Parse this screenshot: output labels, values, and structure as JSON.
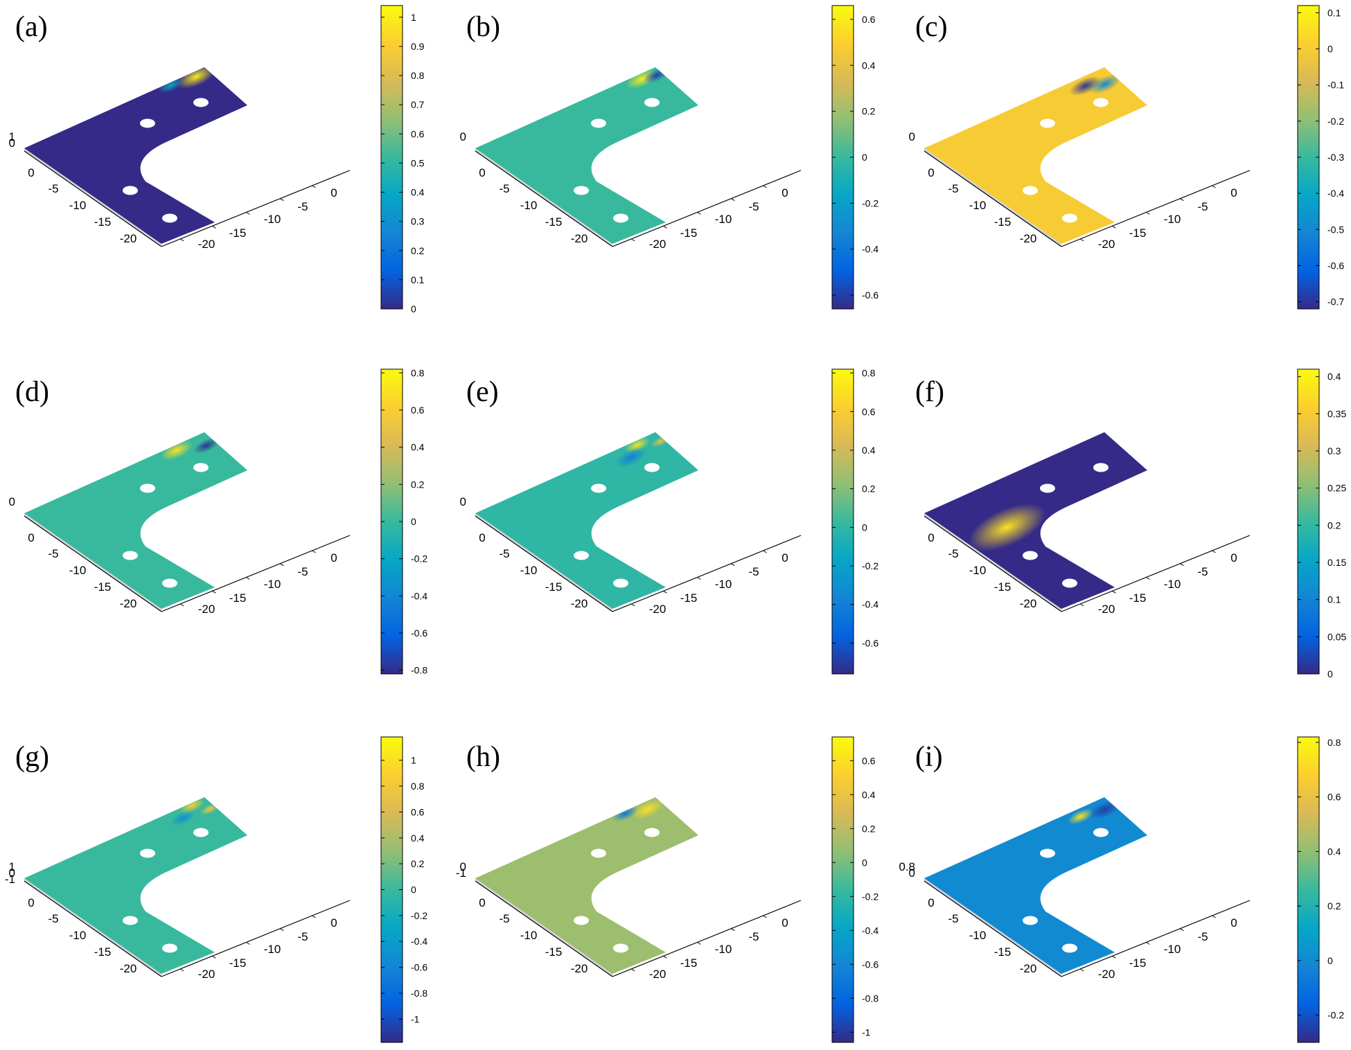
{
  "chart_data": [
    {
      "label": "(a)",
      "type": "surface3d",
      "cb_min": 0,
      "cb_max": 1.04,
      "cb_ticks": [
        "0",
        "0.1",
        "0.2",
        "0.3",
        "0.4",
        "0.5",
        "0.6",
        "0.7",
        "0.8",
        "0.9",
        "1"
      ],
      "cb_values": [
        0,
        0.1,
        0.2,
        0.3,
        0.4,
        0.5,
        0.6,
        0.7,
        0.8,
        0.9,
        1
      ],
      "x_ticks": [
        "0",
        "-5",
        "-10",
        "-15",
        "-20"
      ],
      "y_ticks": [
        "-20",
        "-15",
        "-10",
        "-5",
        "0"
      ],
      "z_ticks": [
        "1",
        "0"
      ],
      "base_level": 0.0,
      "hot": [
        {
          "u": 0.93,
          "v": 0.9,
          "val": 1.0,
          "s": 0.06
        },
        {
          "u": 0.8,
          "v": 0.95,
          "val": 0.4,
          "s": 0.04
        }
      ]
    },
    {
      "label": "(b)",
      "type": "surface3d",
      "cb_min": -0.66,
      "cb_max": 0.66,
      "cb_ticks": [
        "-0.6",
        "-0.4",
        "-0.2",
        "0",
        "0.2",
        "0.4",
        "0.6"
      ],
      "cb_values": [
        -0.6,
        -0.4,
        -0.2,
        0,
        0.2,
        0.4,
        0.6
      ],
      "x_ticks": [
        "0",
        "-5",
        "-10",
        "-15",
        "-20"
      ],
      "y_ticks": [
        "-20",
        "-15",
        "-10",
        "-5",
        "0"
      ],
      "z_ticks": [
        "0"
      ],
      "base_level": 0.0,
      "hot": [
        {
          "u": 0.9,
          "v": 0.9,
          "val": 0.6,
          "s": 0.05
        },
        {
          "u": 0.97,
          "v": 0.85,
          "val": -0.6,
          "s": 0.04
        }
      ]
    },
    {
      "label": "(c)",
      "type": "surface3d",
      "cb_min": -0.72,
      "cb_max": 0.12,
      "cb_ticks": [
        "-0.7",
        "-0.6",
        "-0.5",
        "-0.4",
        "-0.3",
        "-0.2",
        "-0.1",
        "0",
        "0.1"
      ],
      "cb_values": [
        -0.7,
        -0.6,
        -0.5,
        -0.4,
        -0.3,
        -0.2,
        -0.1,
        0,
        0.1
      ],
      "x_ticks": [
        "0",
        "-5",
        "-10",
        "-15",
        "-20"
      ],
      "y_ticks": [
        "-20",
        "-15",
        "-10",
        "-5",
        "0"
      ],
      "z_ticks": [
        "0"
      ],
      "base_level": 0.0,
      "hot": [
        {
          "u": 0.85,
          "v": 0.82,
          "val": -0.7,
          "s": 0.05
        },
        {
          "u": 0.93,
          "v": 0.7,
          "val": -0.5,
          "s": 0.05
        }
      ]
    },
    {
      "label": "(d)",
      "type": "surface3d",
      "cb_min": -0.82,
      "cb_max": 0.82,
      "cb_ticks": [
        "-0.8",
        "-0.6",
        "-0.4",
        "-0.2",
        "0",
        "0.2",
        "0.4",
        "0.6",
        "0.8"
      ],
      "cb_values": [
        -0.8,
        -0.6,
        -0.4,
        -0.2,
        0,
        0.2,
        0.4,
        0.6,
        0.8
      ],
      "x_ticks": [
        "0",
        "-5",
        "-10",
        "-15",
        "-20"
      ],
      "y_ticks": [
        "-20",
        "-15",
        "-10",
        "-5",
        "0"
      ],
      "z_ticks": [
        "0"
      ],
      "base_level": 0.0,
      "hot": [
        {
          "u": 0.82,
          "v": 0.9,
          "val": 0.7,
          "s": 0.05
        },
        {
          "u": 0.95,
          "v": 0.75,
          "val": -0.8,
          "s": 0.04
        }
      ]
    },
    {
      "label": "(e)",
      "type": "surface3d",
      "cb_min": -0.76,
      "cb_max": 0.82,
      "cb_ticks": [
        "-0.6",
        "-0.4",
        "-0.2",
        "0",
        "0.2",
        "0.4",
        "0.6",
        "0.8"
      ],
      "cb_values": [
        -0.6,
        -0.4,
        -0.2,
        0,
        0.2,
        0.4,
        0.6,
        0.8
      ],
      "x_ticks": [
        "0",
        "-5",
        "-10",
        "-15",
        "-20"
      ],
      "y_ticks": [
        "-20",
        "-15",
        "-10",
        "-5",
        "0"
      ],
      "z_ticks": [
        "0"
      ],
      "base_level": 0.0,
      "hot": [
        {
          "u": 0.88,
          "v": 0.92,
          "val": 0.7,
          "s": 0.04
        },
        {
          "u": 0.98,
          "v": 0.8,
          "val": 0.5,
          "s": 0.03
        },
        {
          "u": 0.8,
          "v": 0.75,
          "val": -0.4,
          "s": 0.05
        }
      ]
    },
    {
      "label": "(f)",
      "type": "surface3d",
      "cb_min": 0,
      "cb_max": 0.41,
      "cb_ticks": [
        "0",
        "0.05",
        "0.1",
        "0.15",
        "0.2",
        "0.25",
        "0.3",
        "0.35",
        "0.4"
      ],
      "cb_values": [
        0,
        0.05,
        0.1,
        0.15,
        0.2,
        0.25,
        0.3,
        0.35,
        0.4
      ],
      "x_ticks": [
        "0",
        "-5",
        "-10",
        "-15",
        "-20"
      ],
      "y_ticks": [
        "-20",
        "-15",
        "-10",
        "-5",
        "0"
      ],
      "z_ticks": [],
      "base_level": 0.0,
      "hot": [
        {
          "u": 0.18,
          "v": 0.1,
          "val": 0.38,
          "s": 0.12
        }
      ]
    },
    {
      "label": "(g)",
      "type": "surface3d",
      "cb_min": -1.18,
      "cb_max": 1.18,
      "cb_ticks": [
        "-1",
        "-0.8",
        "-0.6",
        "-0.4",
        "-0.2",
        "0",
        "0.2",
        "0.4",
        "0.6",
        "0.8",
        "1"
      ],
      "cb_values": [
        -1,
        -0.8,
        -0.6,
        -0.4,
        -0.2,
        0,
        0.2,
        0.4,
        0.6,
        0.8,
        1
      ],
      "x_ticks": [
        "0",
        "-5",
        "-10",
        "-15",
        "-20"
      ],
      "y_ticks": [
        "-20",
        "-15",
        "-10",
        "-5",
        "0"
      ],
      "z_ticks": [
        "1",
        "0",
        "-1"
      ],
      "base_level": 0.0,
      "hot": [
        {
          "u": 0.92,
          "v": 0.95,
          "val": 0.9,
          "s": 0.04
        },
        {
          "u": 0.83,
          "v": 0.8,
          "val": -0.5,
          "s": 0.04
        },
        {
          "u": 0.97,
          "v": 0.75,
          "val": 0.8,
          "s": 0.03
        }
      ]
    },
    {
      "label": "(h)",
      "type": "surface3d",
      "cb_min": -1.06,
      "cb_max": 0.74,
      "cb_ticks": [
        "-1",
        "-0.8",
        "-0.6",
        "-0.4",
        "-0.2",
        "0",
        "0.2",
        "0.4",
        "0.6"
      ],
      "cb_values": [
        -1,
        -0.8,
        -0.6,
        -0.4,
        -0.2,
        0,
        0.2,
        0.4,
        0.6
      ],
      "x_ticks": [
        "0",
        "-5",
        "-10",
        "-15",
        "-20"
      ],
      "y_ticks": [
        "-20",
        "-15",
        "-10",
        "-5",
        "0"
      ],
      "z_ticks": [
        "0",
        "-1"
      ],
      "base_level": 0.1,
      "hot": [
        {
          "u": 0.92,
          "v": 0.85,
          "val": 0.6,
          "s": 0.05
        },
        {
          "u": 0.82,
          "v": 0.95,
          "val": -0.7,
          "s": 0.04
        }
      ]
    },
    {
      "label": "(i)",
      "type": "surface3d",
      "cb_min": -0.3,
      "cb_max": 0.82,
      "cb_ticks": [
        "-0.2",
        "0",
        "0.2",
        "0.4",
        "0.6",
        "0.8"
      ],
      "cb_values": [
        -0.2,
        0,
        0.2,
        0.4,
        0.6,
        0.8
      ],
      "x_ticks": [
        "0",
        "-5",
        "-10",
        "-15",
        "-20"
      ],
      "y_ticks": [
        "-20",
        "-15",
        "-10",
        "-5",
        "0"
      ],
      "z_ticks": [
        "0.8",
        "0"
      ],
      "base_level": 0.0,
      "hot": [
        {
          "u": 0.83,
          "v": 0.85,
          "val": 0.75,
          "s": 0.04
        },
        {
          "u": 0.95,
          "v": 0.78,
          "val": -0.25,
          "s": 0.05
        }
      ]
    }
  ],
  "colors": {
    "parula": [
      "#352a87",
      "#0363e1",
      "#1485d4",
      "#06a7c6",
      "#38b99e",
      "#92bf73",
      "#d9ba56",
      "#fcce2e",
      "#f9fb0e"
    ]
  }
}
